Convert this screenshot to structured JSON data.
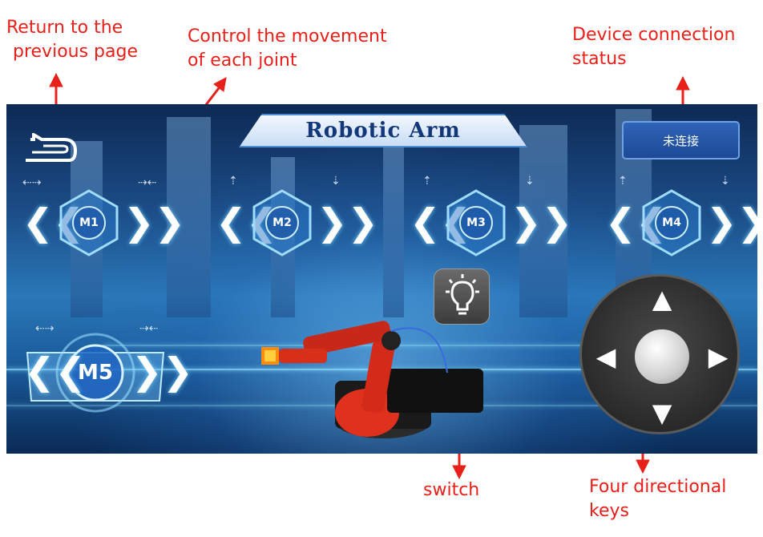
{
  "annotations": {
    "return": [
      "Return to the",
      "previous page"
    ],
    "joints": [
      "Control the movement",
      "of each joint"
    ],
    "status": [
      "Device connection",
      "status"
    ],
    "switch": "switch",
    "dpad": [
      "Four directional",
      "keys"
    ]
  },
  "app": {
    "title": "Robotic Arm",
    "connection_status": "未连接"
  },
  "joints": [
    {
      "label": "M1"
    },
    {
      "label": "M2"
    },
    {
      "label": "M3"
    },
    {
      "label": "M4"
    }
  ],
  "joint5": {
    "label": "M5"
  },
  "controls": {
    "chevron_left": "❮❮",
    "chevron_right": "❯❯",
    "switch_icon": "lightbulb-icon",
    "dpad": {
      "up": "▲",
      "down": "▼",
      "left": "◀",
      "right": "▶"
    }
  },
  "colors": {
    "annotation": "#e8201a",
    "status_button": "#2f64b8",
    "title_text": "#12377a"
  }
}
